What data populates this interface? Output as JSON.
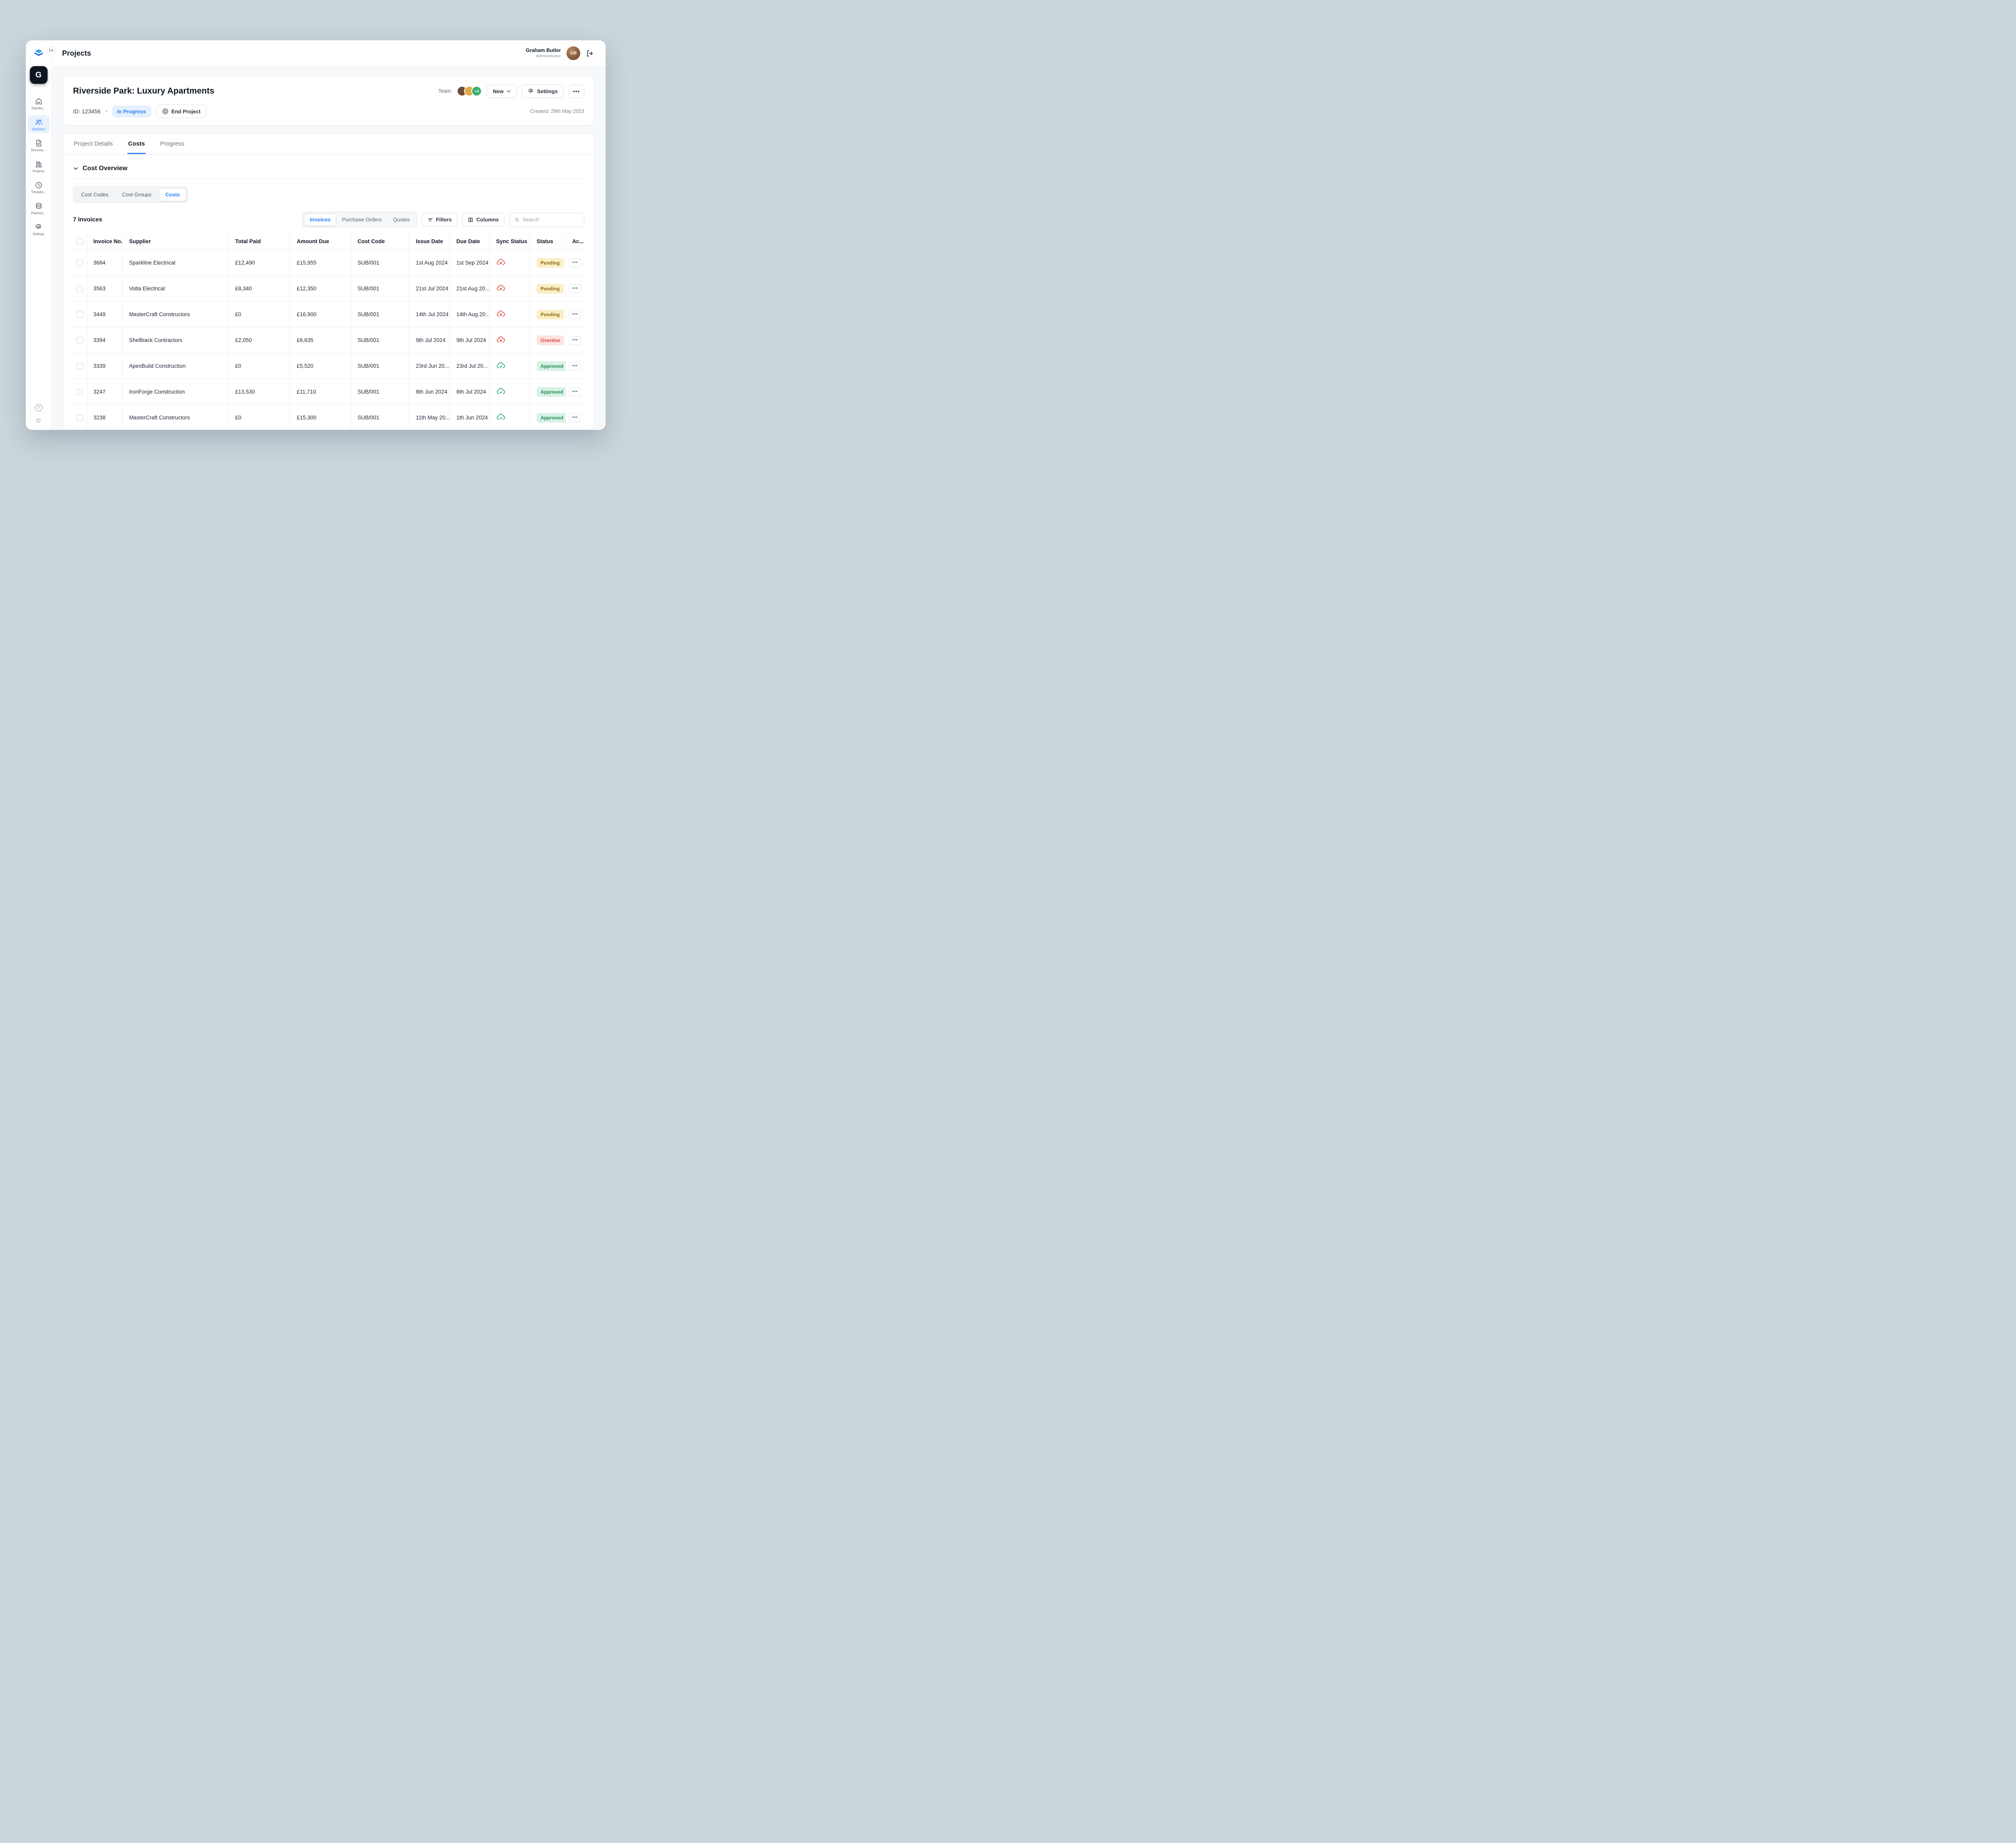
{
  "colors": {
    "accent": "#2f80ed",
    "page_background": "#cbd5dc",
    "in_progress_bg": "#e4f0fd",
    "pending_bg": "#fbeec4",
    "pending_text": "#8a6a16",
    "overdue_bg": "#fde3e1",
    "overdue_text": "#d2493f",
    "approved_bg": "#d8f2e4",
    "approved_text": "#1f8a57",
    "sync_error": "#e0443a",
    "sync_ok": "#18a05e"
  },
  "topbar": {
    "title": "Projects",
    "user": {
      "name": "Graham Butler",
      "role": "Administrator",
      "initials": "GB"
    }
  },
  "sidebar": {
    "org_logo_letter": "G",
    "items": [
      {
        "id": "dashboard",
        "icon": "home",
        "label": "Dashbo...",
        "active": false
      },
      {
        "id": "directory",
        "icon": "users",
        "label": "Directory",
        "active": true
      },
      {
        "id": "documents",
        "icon": "document",
        "label": "Docume...",
        "active": false
      },
      {
        "id": "projects",
        "icon": "building",
        "label": "Projects",
        "active": false
      },
      {
        "id": "timesheets",
        "icon": "clock",
        "label": "Timeshe...",
        "active": false
      },
      {
        "id": "payments",
        "icon": "coins",
        "label": "Paymen...",
        "active": false
      },
      {
        "id": "settings",
        "icon": "gear",
        "label": "Settings",
        "active": false
      }
    ]
  },
  "project": {
    "title": "Riverside Park: Luxury Apartments",
    "id_label": "ID: 123456",
    "status_badge": "In Progress",
    "end_project_label": "End Project",
    "team_label": "Team:",
    "team_avatars": [
      {
        "kind": "photo",
        "bg": "#6e4e38",
        "label": ""
      },
      {
        "kind": "photo",
        "bg": "#e3a93c",
        "label": ""
      },
      {
        "kind": "count",
        "bg": "#35b06f",
        "label": "+2"
      }
    ],
    "new_button": "New",
    "settings_button": "Settings",
    "created_label": "Created: 29th May 2023",
    "tabs": [
      {
        "label": "Project Details",
        "active": false
      },
      {
        "label": "Costs",
        "active": true
      },
      {
        "label": "Progress",
        "active": false
      }
    ]
  },
  "costs": {
    "section_title": "Cost Overview",
    "subtabs": [
      {
        "label": "Cost Codes",
        "active": false
      },
      {
        "label": "Cost Groups",
        "active": false
      },
      {
        "label": "Costs",
        "active": true
      }
    ],
    "count_label": "7 Invoices",
    "doc_tabs": [
      {
        "label": "Invoices",
        "active": true
      },
      {
        "label": "Purchase Orders",
        "active": false
      },
      {
        "label": "Quotes",
        "active": false
      }
    ],
    "filters_button": "Filters",
    "columns_button": "Columns",
    "search_placeholder": "Search"
  },
  "table": {
    "headers": [
      "Invoice No.",
      "Supplier",
      "Total Paid",
      "Amount Due",
      "Cost Code",
      "Issue Date",
      "Due Date",
      "Sync Status",
      "Status",
      "Ac..."
    ],
    "rows": [
      {
        "invoice_no": "3684",
        "supplier": "Sparkline Electrical",
        "total_paid": "£12,490",
        "amount_due": "£15,955",
        "cost_code": "SUB/001",
        "issue_date": "1st Aug 2024",
        "due_date": "1st Sep 2024",
        "sync": "error",
        "status": "Pending"
      },
      {
        "invoice_no": "3563",
        "supplier": "Volta Electrical",
        "total_paid": "£8,340",
        "amount_due": "£12,350",
        "cost_code": "SUB/001",
        "issue_date": "21st Jul 2024",
        "due_date": "21st Aug 20...",
        "sync": "error",
        "status": "Pending"
      },
      {
        "invoice_no": "3449",
        "supplier": "MasterCraft Constructors",
        "total_paid": "£0",
        "amount_due": "£16,900",
        "cost_code": "SUB/001",
        "issue_date": "14th Jul 2024",
        "due_date": "14th Aug 20...",
        "sync": "error",
        "status": "Pending"
      },
      {
        "invoice_no": "3394",
        "supplier": "Shellback Contractors",
        "total_paid": "£2,050",
        "amount_due": "£6,635",
        "cost_code": "SUB/001",
        "issue_date": "9th Jul 2024",
        "due_date": "9th Jul 2024",
        "sync": "error",
        "status": "Overdue"
      },
      {
        "invoice_no": "3339",
        "supplier": "ApexBuild Construction",
        "total_paid": "£0",
        "amount_due": "£5,520",
        "cost_code": "SUB/001",
        "issue_date": "23rd Jun 20...",
        "due_date": "23rd Jul 20...",
        "sync": "ok",
        "status": "Approved"
      },
      {
        "invoice_no": "3247",
        "supplier": "IronForge Construction",
        "total_paid": "£13,530",
        "amount_due": "£11,710",
        "cost_code": "SUB/001",
        "issue_date": "8th Jun 2024",
        "due_date": "8th Jul 2024",
        "sync": "ok",
        "status": "Approved"
      },
      {
        "invoice_no": "3238",
        "supplier": "MasterCraft Constructors",
        "total_paid": "£0",
        "amount_due": "£15,300",
        "cost_code": "SUB/001",
        "issue_date": "11th May 20...",
        "due_date": "1th Jun 2024",
        "sync": "ok",
        "status": "Approved"
      }
    ]
  }
}
